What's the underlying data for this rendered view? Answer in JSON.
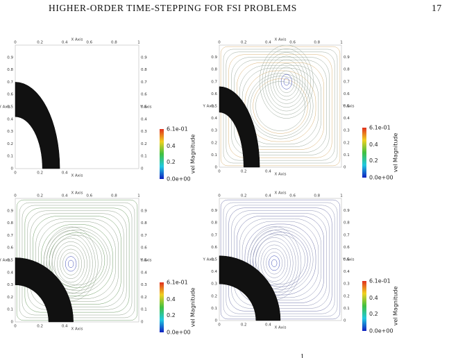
{
  "header": {
    "title": "HIGHER-ORDER TIME-STEPPING FOR FSI PROBLEMS",
    "page_number": "17"
  },
  "axes": {
    "x_ticks": [
      "0",
      "0.2",
      "0.4",
      "0.6",
      "0.8",
      "1"
    ],
    "y_ticks": [
      "0",
      "0.1",
      "0.2",
      "0.3",
      "0.4",
      "0.5",
      "0.6",
      "0.7",
      "0.8",
      "0.9"
    ],
    "x_label": "X Axis",
    "y_label": "Y Axis"
  },
  "colorbar": {
    "labels": [
      "6.1e-01",
      "0.4",
      "0.2",
      "0.0e+00"
    ],
    "title": "vel Magnitude"
  },
  "footnote": "1"
}
